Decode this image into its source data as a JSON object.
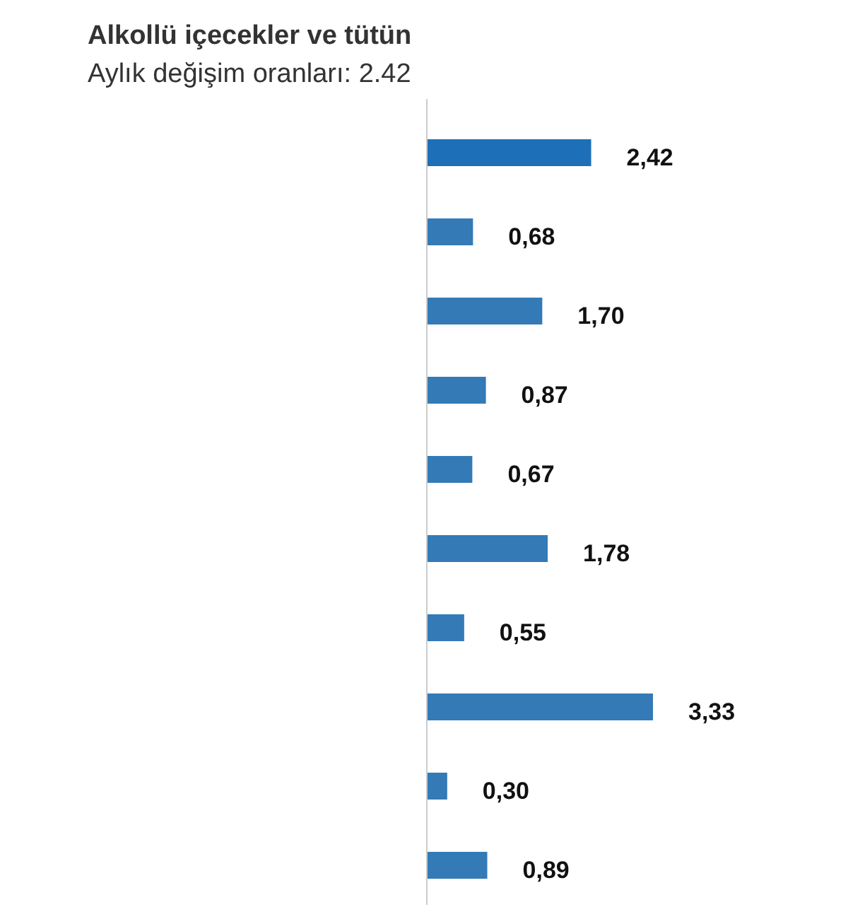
{
  "chart_data": {
    "type": "bar",
    "orientation": "horizontal",
    "categories": [
      null,
      null,
      null,
      null,
      null,
      null,
      null,
      null,
      null,
      null
    ],
    "values": [
      2.42,
      0.68,
      1.7,
      0.87,
      0.67,
      1.78,
      0.55,
      3.33,
      0.3,
      0.89
    ],
    "colors": [
      "#1d6fb8",
      "#337ab7",
      "#337ab7",
      "#337ab7",
      "#337ab7",
      "#337ab7",
      "#337ab7",
      "#337ab7",
      "#337ab7",
      "#337ab7"
    ],
    "value_labels": [
      "2,42",
      "0,68",
      "1,70",
      "0,87",
      "0,67",
      "1,78",
      "0,55",
      "3,33",
      "0,30",
      "0,89"
    ],
    "annotations": [
      "Alkollü içecekler ve tütün",
      "Aylık değişim oranları: 2.42"
    ]
  }
}
